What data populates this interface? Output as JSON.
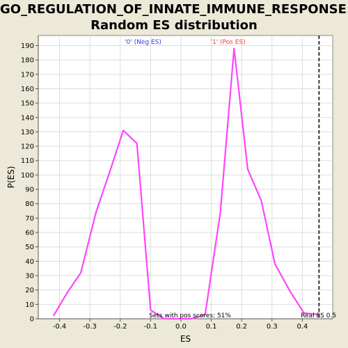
{
  "chart_data": {
    "type": "line",
    "title_line1": "GO_REGULATION_OF_INNATE_IMMUNE_RESPONSE:",
    "title_line2": "Random ES distribution",
    "xlabel": "ES",
    "ylabel": "P(ES)",
    "xlim": [
      -0.47,
      0.5
    ],
    "ylim": [
      0,
      197
    ],
    "xticks": [
      -0.4,
      -0.3,
      -0.2,
      -0.1,
      0.0,
      0.1,
      0.2,
      0.3,
      0.4
    ],
    "xtick_labels": [
      "-0.4",
      "-0.3",
      "-0.2",
      "-0.1",
      "0.0",
      "0.1",
      "0.2",
      "0.3",
      "0.4"
    ],
    "yticks": [
      0,
      10,
      20,
      30,
      40,
      50,
      60,
      70,
      80,
      90,
      100,
      110,
      120,
      130,
      140,
      150,
      160,
      170,
      180,
      190
    ],
    "grid": true,
    "series": [
      {
        "color": "#ff44ff",
        "x": [
          -0.42,
          -0.375,
          -0.33,
          -0.28,
          -0.235,
          -0.19,
          -0.145,
          -0.1,
          -0.055,
          -0.01,
          0.035,
          0.08,
          0.13,
          0.175,
          0.22,
          0.265,
          0.31,
          0.36,
          0.405,
          0.45
        ],
        "y": [
          2,
          18,
          32,
          74,
          102,
          131,
          122,
          6,
          0,
          0,
          0,
          3,
          74,
          188,
          104,
          82,
          38,
          19,
          4,
          3
        ]
      }
    ],
    "annotations": {
      "neg_label": "'0' (Neg ES)",
      "pos_label": "'1' (Pos ES)",
      "sets_with_pos": "Sets with pos scores: 51%",
      "real_es_label": "Real ES 0.5",
      "real_es_value": 0.455,
      "neg_color": "#3333ff",
      "pos_color": "#ff3333"
    }
  }
}
